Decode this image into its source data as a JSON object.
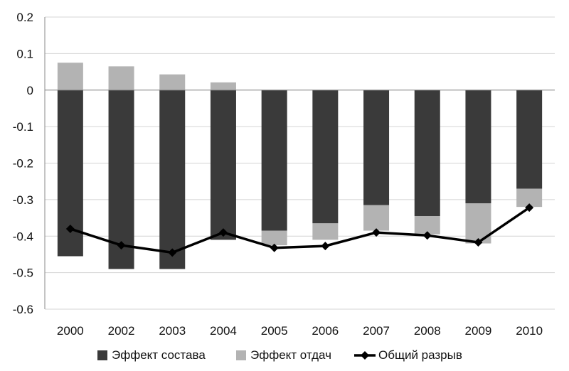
{
  "chart_data": {
    "type": "bar",
    "stacked": true,
    "categories": [
      "2000",
      "2002",
      "2003",
      "2004",
      "2005",
      "2006",
      "2007",
      "2008",
      "2009",
      "2010"
    ],
    "ylim": [
      -0.6,
      0.2
    ],
    "yticks": [
      0.2,
      0.1,
      0,
      -0.1,
      -0.2,
      -0.3,
      -0.4,
      -0.5,
      -0.6
    ],
    "ytick_labels": [
      "0.2",
      "0.1",
      "0",
      "-0.1",
      "-0.2",
      "-0.3",
      "-0.4",
      "-0.5",
      "-0.6"
    ],
    "grid": true,
    "legend_position": "bottom",
    "series": [
      {
        "name": "Эффект состава",
        "type": "bar",
        "color": "#3a3a3a",
        "values": [
          -0.455,
          -0.49,
          -0.49,
          -0.41,
          -0.385,
          -0.365,
          -0.315,
          -0.345,
          -0.31,
          -0.27
        ]
      },
      {
        "name": "Эффект отдач",
        "type": "bar",
        "color": "#b3b3b3",
        "values": [
          0.075,
          0.065,
          0.043,
          0.021,
          -0.04,
          -0.045,
          -0.07,
          -0.05,
          -0.11,
          -0.05
        ]
      },
      {
        "name": "Общий разрыв",
        "type": "line",
        "color": "#000000",
        "marker": "diamond",
        "values": [
          -0.38,
          -0.425,
          -0.445,
          -0.39,
          -0.432,
          -0.427,
          -0.39,
          -0.398,
          -0.417,
          -0.322
        ]
      }
    ]
  }
}
